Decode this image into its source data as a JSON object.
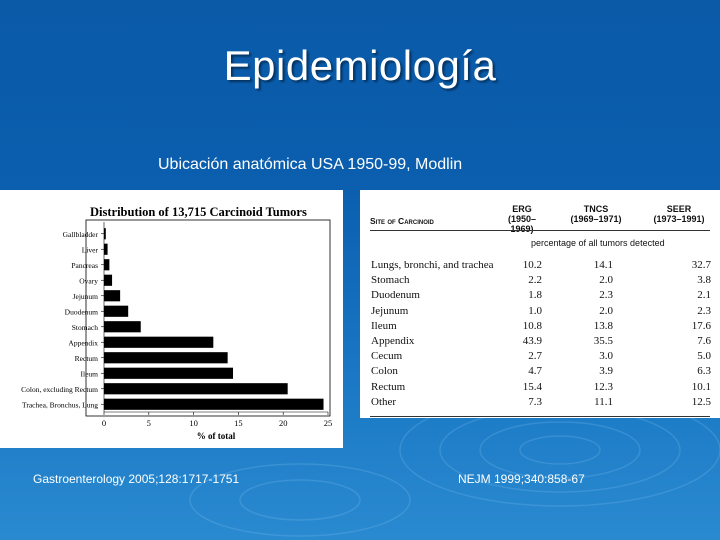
{
  "slide": {
    "title": "Epidemiología",
    "subtitle": "Ubicación anatómica USA 1950-99, Modlin",
    "source_left": "Gastroenterology 2005;128:1717-1751",
    "source_right": "NEJM 1999;340:858-67"
  },
  "chart_data": {
    "type": "bar",
    "orientation": "horizontal",
    "title": "Distribution of 13,715 Carcinoid Tumors",
    "xlabel": "% of total",
    "ylabel": "",
    "xlim": [
      0,
      25
    ],
    "x_ticks": [
      "0",
      "5",
      "10",
      "15",
      "20",
      "25"
    ],
    "categories": [
      "Gallbladder",
      "Liver",
      "Pancreas",
      "Ovary",
      "Jejunum",
      "Duodenum",
      "Stomach",
      "Appendix",
      "Rectum",
      "Ileum",
      "Colon, excluding Rectum",
      "Trachea, Bronchus, Lung"
    ],
    "values": [
      0.2,
      0.4,
      0.6,
      0.9,
      1.8,
      2.7,
      4.1,
      12.2,
      13.8,
      14.4,
      20.5,
      24.5
    ],
    "grid": false,
    "legend": "none",
    "bar_color": "#000000"
  },
  "table": {
    "site_header": "Site of Carcinoid",
    "columns": [
      {
        "name": "ERG",
        "years": "(1950–1969)"
      },
      {
        "name": "TNCS",
        "years": "(1969–1971)"
      },
      {
        "name": "SEER",
        "years": "(1973–1991)"
      }
    ],
    "caption": "percentage of all tumors detected",
    "rows": [
      {
        "site": "Lungs, bronchi, and trachea",
        "erg": "10.2",
        "tncs": "14.1",
        "seer": "32.7"
      },
      {
        "site": "Stomach",
        "erg": "2.2",
        "tncs": "2.0",
        "seer": "3.8"
      },
      {
        "site": "Duodenum",
        "erg": "1.8",
        "tncs": "2.3",
        "seer": "2.1"
      },
      {
        "site": "Jejunum",
        "erg": "1.0",
        "tncs": "2.0",
        "seer": "2.3"
      },
      {
        "site": "Ileum",
        "erg": "10.8",
        "tncs": "13.8",
        "seer": "17.6"
      },
      {
        "site": "Appendix",
        "erg": "43.9",
        "tncs": "35.5",
        "seer": "7.6"
      },
      {
        "site": "Cecum",
        "erg": "2.7",
        "tncs": "3.0",
        "seer": "5.0"
      },
      {
        "site": "Colon",
        "erg": "4.7",
        "tncs": "3.9",
        "seer": "6.3"
      },
      {
        "site": "Rectum",
        "erg": "15.4",
        "tncs": "12.3",
        "seer": "10.1"
      },
      {
        "site": "Other",
        "erg": "7.3",
        "tncs": "11.1",
        "seer": "12.5"
      }
    ]
  }
}
